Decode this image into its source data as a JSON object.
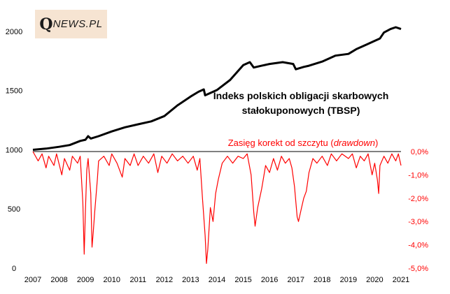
{
  "logo": {
    "q": "Q",
    "rest": "NEWS.PL"
  },
  "chart_data": {
    "type": "line",
    "title_main": "Indeks polskich obligacji skarbowych",
    "title_main_2": "stałokuponowych (TBSP)",
    "title_dd": "Zasięg korekt od szczytu",
    "title_dd_italic": "drawdown",
    "x_ticks": [
      "2007",
      "2008",
      "2009",
      "2010",
      "2011",
      "2012",
      "2013",
      "2014",
      "2015",
      "2016",
      "2017",
      "2018",
      "2019",
      "2020",
      "2021"
    ],
    "y_left_ticks": [
      "0",
      "500",
      "1000",
      "1500",
      "2000"
    ],
    "y_right_ticks": [
      "0,0%",
      "-1,0%",
      "-2,0%",
      "-3,0%",
      "-4,0%",
      "-5,0%"
    ],
    "y_left_range": [
      0,
      2100
    ],
    "y_right_range": [
      -5.0,
      0.0
    ],
    "colors": {
      "index": "#000000",
      "drawdown": "#ff0000",
      "right_axis": "#ff0000",
      "zero_line": "#000000"
    },
    "series": [
      {
        "name": "Indeks polskich obligacji skarbowych stałokuponowych (TBSP)",
        "axis": "left",
        "points": [
          [
            2007.0,
            1000
          ],
          [
            2007.5,
            1010
          ],
          [
            2008.0,
            1025
          ],
          [
            2008.4,
            1040
          ],
          [
            2008.8,
            1075
          ],
          [
            2009.0,
            1085
          ],
          [
            2009.1,
            1115
          ],
          [
            2009.2,
            1095
          ],
          [
            2009.5,
            1115
          ],
          [
            2010.0,
            1155
          ],
          [
            2010.5,
            1190
          ],
          [
            2011.0,
            1215
          ],
          [
            2011.5,
            1240
          ],
          [
            2012.0,
            1285
          ],
          [
            2012.5,
            1375
          ],
          [
            2013.0,
            1450
          ],
          [
            2013.3,
            1490
          ],
          [
            2013.5,
            1510
          ],
          [
            2013.55,
            1460
          ],
          [
            2013.7,
            1475
          ],
          [
            2014.0,
            1505
          ],
          [
            2014.5,
            1590
          ],
          [
            2015.0,
            1715
          ],
          [
            2015.25,
            1740
          ],
          [
            2015.4,
            1695
          ],
          [
            2015.7,
            1710
          ],
          [
            2016.0,
            1725
          ],
          [
            2016.5,
            1740
          ],
          [
            2016.9,
            1725
          ],
          [
            2017.0,
            1680
          ],
          [
            2017.3,
            1700
          ],
          [
            2017.5,
            1710
          ],
          [
            2018.0,
            1745
          ],
          [
            2018.5,
            1795
          ],
          [
            2019.0,
            1810
          ],
          [
            2019.3,
            1850
          ],
          [
            2019.7,
            1890
          ],
          [
            2020.0,
            1920
          ],
          [
            2020.2,
            1940
          ],
          [
            2020.35,
            1990
          ],
          [
            2020.6,
            2020
          ],
          [
            2020.8,
            2035
          ],
          [
            2021.0,
            2020
          ]
        ]
      },
      {
        "name": "Zasięg korekt od szczytu (drawdown)",
        "axis": "right",
        "points": [
          [
            2007.0,
            0
          ],
          [
            2007.2,
            -0.4
          ],
          [
            2007.35,
            -0.1
          ],
          [
            2007.5,
            -0.7
          ],
          [
            2007.6,
            -0.2
          ],
          [
            2007.8,
            -0.6
          ],
          [
            2007.9,
            -0.1
          ],
          [
            2008.1,
            -1.0
          ],
          [
            2008.2,
            -0.3
          ],
          [
            2008.4,
            -0.8
          ],
          [
            2008.5,
            -0.2
          ],
          [
            2008.7,
            -0.5
          ],
          [
            2008.8,
            -0.2
          ],
          [
            2008.9,
            -2.2
          ],
          [
            2008.95,
            -4.4
          ],
          [
            2009.0,
            -2.5
          ],
          [
            2009.05,
            -0.8
          ],
          [
            2009.1,
            -0.3
          ],
          [
            2009.2,
            -1.8
          ],
          [
            2009.25,
            -4.1
          ],
          [
            2009.3,
            -3.4
          ],
          [
            2009.35,
            -2.6
          ],
          [
            2009.45,
            -1.2
          ],
          [
            2009.5,
            -0.4
          ],
          [
            2009.7,
            -0.2
          ],
          [
            2009.9,
            -0.6
          ],
          [
            2010.0,
            -0.1
          ],
          [
            2010.2,
            -0.5
          ],
          [
            2010.4,
            -1.1
          ],
          [
            2010.5,
            -0.3
          ],
          [
            2010.7,
            -0.6
          ],
          [
            2010.85,
            -0.1
          ],
          [
            2011.0,
            -0.6
          ],
          [
            2011.2,
            -0.2
          ],
          [
            2011.4,
            -0.5
          ],
          [
            2011.6,
            -0.1
          ],
          [
            2011.75,
            -0.9
          ],
          [
            2011.9,
            -0.2
          ],
          [
            2012.1,
            -0.5
          ],
          [
            2012.3,
            -0.1
          ],
          [
            2012.5,
            -0.4
          ],
          [
            2012.7,
            -0.2
          ],
          [
            2012.9,
            -0.5
          ],
          [
            2013.1,
            -0.2
          ],
          [
            2013.25,
            -0.8
          ],
          [
            2013.35,
            -0.3
          ],
          [
            2013.45,
            -2.0
          ],
          [
            2013.55,
            -3.6
          ],
          [
            2013.6,
            -4.8
          ],
          [
            2013.65,
            -4.2
          ],
          [
            2013.75,
            -2.4
          ],
          [
            2013.85,
            -3.0
          ],
          [
            2013.95,
            -1.8
          ],
          [
            2014.05,
            -1.2
          ],
          [
            2014.2,
            -0.5
          ],
          [
            2014.4,
            -0.2
          ],
          [
            2014.6,
            -0.5
          ],
          [
            2014.8,
            -0.2
          ],
          [
            2015.0,
            -0.3
          ],
          [
            2015.15,
            -0.1
          ],
          [
            2015.3,
            -1.0
          ],
          [
            2015.4,
            -2.6
          ],
          [
            2015.45,
            -3.2
          ],
          [
            2015.55,
            -2.4
          ],
          [
            2015.7,
            -1.6
          ],
          [
            2015.85,
            -0.6
          ],
          [
            2016.0,
            -0.9
          ],
          [
            2016.15,
            -0.3
          ],
          [
            2016.3,
            -0.8
          ],
          [
            2016.45,
            -0.2
          ],
          [
            2016.6,
            -0.5
          ],
          [
            2016.75,
            -0.3
          ],
          [
            2016.85,
            -0.7
          ],
          [
            2016.95,
            -1.5
          ],
          [
            2017.05,
            -2.8
          ],
          [
            2017.1,
            -3.0
          ],
          [
            2017.2,
            -2.5
          ],
          [
            2017.3,
            -2.0
          ],
          [
            2017.4,
            -1.7
          ],
          [
            2017.5,
            -0.9
          ],
          [
            2017.65,
            -0.3
          ],
          [
            2017.8,
            -0.5
          ],
          [
            2018.0,
            -0.2
          ],
          [
            2018.2,
            -0.6
          ],
          [
            2018.35,
            -0.1
          ],
          [
            2018.55,
            -0.4
          ],
          [
            2018.75,
            -0.1
          ],
          [
            2019.0,
            -0.3
          ],
          [
            2019.15,
            -0.1
          ],
          [
            2019.3,
            -0.7
          ],
          [
            2019.45,
            -0.2
          ],
          [
            2019.6,
            -0.4
          ],
          [
            2019.75,
            -0.1
          ],
          [
            2019.9,
            -1.0
          ],
          [
            2020.0,
            -0.5
          ],
          [
            2020.1,
            -1.2
          ],
          [
            2020.15,
            -1.8
          ],
          [
            2020.2,
            -0.6
          ],
          [
            2020.35,
            -0.2
          ],
          [
            2020.5,
            -0.5
          ],
          [
            2020.65,
            -0.1
          ],
          [
            2020.8,
            -0.4
          ],
          [
            2020.9,
            -0.1
          ],
          [
            2021.0,
            -0.6
          ]
        ]
      }
    ]
  }
}
